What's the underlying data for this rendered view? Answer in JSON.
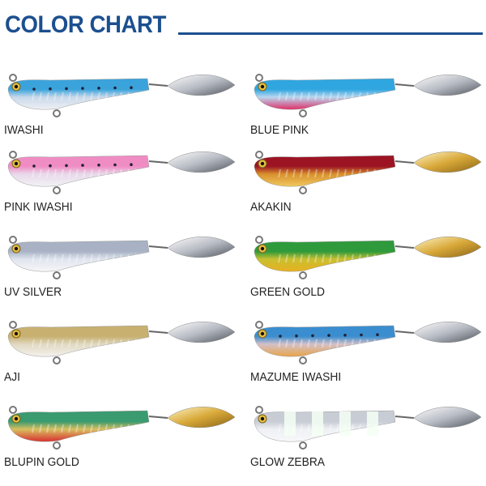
{
  "title": "COLOR CHART",
  "colors": {
    "title": "#1c4f8f"
  },
  "items": [
    {
      "name": "IWASHI",
      "top": "#3aa3dc",
      "mid": "#c8d8ea",
      "belly": "#eef0f4",
      "blade": "silver",
      "dots": true
    },
    {
      "name": "BLUE PINK",
      "top": "#2fa6e0",
      "mid": "#b8d6ee",
      "belly": "#e0306a",
      "blade": "silver",
      "dots": false
    },
    {
      "name": "PINK IWASHI",
      "top": "#f08cc4",
      "mid": "#e8d8ea",
      "belly": "#f2f2f4",
      "blade": "silver",
      "dots": true
    },
    {
      "name": "AKAKIN",
      "top": "#9c1424",
      "mid": "#d8902c",
      "belly": "#f0c860",
      "blade": "gold",
      "dots": false
    },
    {
      "name": "UV SILVER",
      "top": "#a8b2c4",
      "mid": "#dfe4ee",
      "belly": "#f6f6f8",
      "blade": "silver",
      "dots": false
    },
    {
      "name": "GREEN GOLD",
      "top": "#2e9a3c",
      "mid": "#c8c030",
      "belly": "#e8b020",
      "blade": "gold",
      "dots": false
    },
    {
      "name": "AJI",
      "top": "#c8b070",
      "mid": "#e0d8c0",
      "belly": "#f4f2ee",
      "blade": "silver",
      "dots": false
    },
    {
      "name": "MAZUME IWASHI",
      "top": "#3a8ed0",
      "mid": "#d4c0c8",
      "belly": "#e8a448",
      "blade": "silver",
      "dots": true
    },
    {
      "name": "BLUPIN GOLD",
      "top": "#3a9a70",
      "mid": "#d8c060",
      "belly": "#d83030",
      "blade": "gold",
      "dots": false
    },
    {
      "name": "GLOW ZEBRA",
      "top": "#c8ccd4",
      "mid": "#eef0f4",
      "belly": "#f8f8fa",
      "blade": "silver",
      "dots": false,
      "zebra": true
    }
  ]
}
